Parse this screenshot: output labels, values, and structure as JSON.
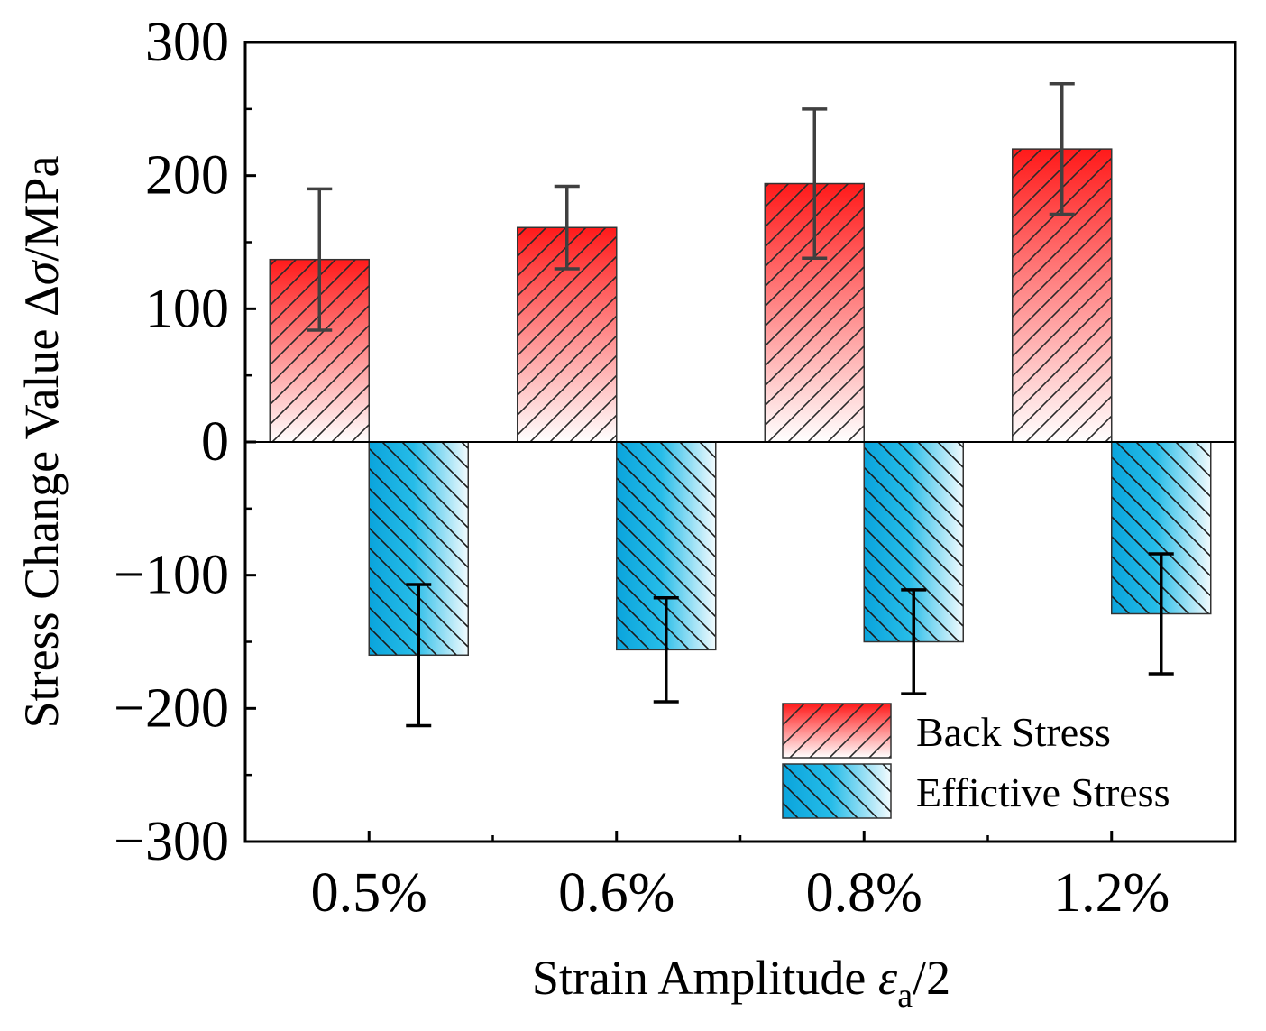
{
  "chart_data": {
    "type": "bar",
    "categories": [
      "0.5%",
      "0.6%",
      "0.8%",
      "1.2%"
    ],
    "series": [
      {
        "name": "Back Stress",
        "values": [
          137,
          161,
          194,
          220
        ],
        "errors": [
          53,
          31,
          56,
          49
        ],
        "color": "#ff1a1a",
        "hatch": "forward-diagonal"
      },
      {
        "name": "Effictive Stress",
        "values": [
          -160,
          -156,
          -150,
          -129
        ],
        "errors": [
          53,
          39,
          39,
          45
        ],
        "color": "#1aa7e0",
        "hatch": "backward-diagonal"
      }
    ],
    "ylim": [
      -300,
      300
    ],
    "yticks": [
      -300,
      -200,
      -100,
      0,
      100,
      200,
      300
    ],
    "ytick_labels": [
      "−300",
      "−200",
      "−100",
      "0",
      "100",
      "200",
      "300"
    ],
    "ylabel": "Stress Change Value Δσ/MPa",
    "xlabel": "Strain Amplitude εa/2",
    "legend_position": "bottom-right",
    "grid": false
  }
}
